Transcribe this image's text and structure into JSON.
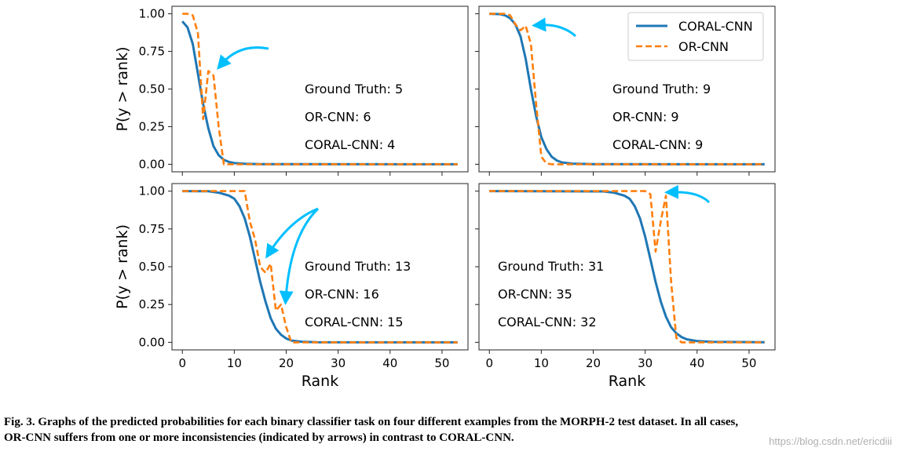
{
  "colors": {
    "coral": "#1f77b4",
    "orcnn": "#ff7f0e",
    "arrow": "#00bfff"
  },
  "caption": {
    "line1": "Fig. 3. Graphs of the predicted probabilities for each binary classifier task on four different examples from the MORPH-2 test dataset.  In all cases,",
    "line2": "OR-CNN suffers from one or more inconsistencies (indicated by arrows) in contrast to CORAL-CNN."
  },
  "watermark": "https://blog.csdn.net/ericdiii",
  "chart_data": [
    {
      "type": "line",
      "xlabel": "",
      "ylabel": "P(y > rank)",
      "xlim": [
        -2,
        55
      ],
      "ylim": [
        -0.05,
        1.05
      ],
      "xticks": [
        0,
        10,
        20,
        30,
        40,
        50
      ],
      "yticks": [
        "0.00",
        "0.25",
        "0.50",
        "0.75",
        "1.00"
      ],
      "annotations": [
        "Ground Truth: 5",
        "OR-CNN: 6",
        "CORAL-CNN: 4"
      ],
      "series": [
        {
          "name": "CORAL-CNN",
          "x": [
            0,
            1,
            2,
            3,
            4,
            5,
            6,
            7,
            8,
            9,
            10,
            12,
            15,
            53
          ],
          "y": [
            0.95,
            0.91,
            0.8,
            0.6,
            0.4,
            0.24,
            0.12,
            0.06,
            0.03,
            0.015,
            0.008,
            0.003,
            0.001,
            0.0
          ]
        },
        {
          "name": "OR-CNN",
          "x": [
            0,
            1,
            2,
            3,
            4,
            5,
            6,
            7,
            8,
            53
          ],
          "y": [
            1.0,
            1.0,
            0.99,
            0.87,
            0.3,
            0.62,
            0.59,
            0.25,
            0.0,
            0.0
          ]
        }
      ]
    },
    {
      "type": "line",
      "xlabel": "",
      "ylabel": "",
      "xlim": [
        -2,
        55
      ],
      "ylim": [
        -0.05,
        1.05
      ],
      "xticks": [
        0,
        10,
        20,
        30,
        40,
        50
      ],
      "yticks": [
        "0.00",
        "0.25",
        "0.50",
        "0.75",
        "1.00"
      ],
      "legend": {
        "position": "top-right",
        "entries": [
          "CORAL-CNN",
          "OR-CNN"
        ]
      },
      "annotations": [
        "Ground Truth: 9",
        "OR-CNN: 9",
        "CORAL-CNN: 9"
      ],
      "series": [
        {
          "name": "CORAL-CNN",
          "x": [
            0,
            2,
            3,
            4,
            5,
            6,
            7,
            8,
            9,
            10,
            11,
            12,
            13,
            14,
            16,
            20,
            53
          ],
          "y": [
            1.0,
            0.998,
            0.99,
            0.97,
            0.93,
            0.85,
            0.7,
            0.5,
            0.32,
            0.18,
            0.1,
            0.05,
            0.025,
            0.012,
            0.004,
            0.001,
            0.0
          ]
        },
        {
          "name": "OR-CNN",
          "x": [
            0,
            3,
            4,
            5,
            6,
            7,
            8,
            9,
            10,
            11,
            12,
            53
          ],
          "y": [
            1.0,
            1.0,
            0.99,
            0.93,
            0.89,
            0.92,
            0.8,
            0.4,
            0.05,
            0.005,
            0.0,
            0.0
          ]
        }
      ]
    },
    {
      "type": "line",
      "xlabel": "Rank",
      "ylabel": "P(y > rank)",
      "xlim": [
        -2,
        55
      ],
      "ylim": [
        -0.05,
        1.05
      ],
      "xticks": [
        0,
        10,
        20,
        30,
        40,
        50
      ],
      "yticks": [
        "0.00",
        "0.25",
        "0.50",
        "0.75",
        "1.00"
      ],
      "annotations": [
        "Ground Truth: 13",
        "OR-CNN: 16",
        "CORAL-CNN: 15"
      ],
      "series": [
        {
          "name": "CORAL-CNN",
          "x": [
            0,
            5,
            7,
            9,
            10,
            11,
            12,
            13,
            14,
            15,
            16,
            17,
            18,
            19,
            20,
            21,
            23,
            26,
            53
          ],
          "y": [
            1.0,
            0.999,
            0.99,
            0.97,
            0.95,
            0.9,
            0.82,
            0.7,
            0.55,
            0.4,
            0.27,
            0.16,
            0.09,
            0.05,
            0.025,
            0.012,
            0.004,
            0.001,
            0.0
          ]
        },
        {
          "name": "OR-CNN",
          "x": [
            0,
            12,
            13,
            14,
            15,
            16,
            17,
            18,
            19,
            20,
            21,
            53
          ],
          "y": [
            1.0,
            1.0,
            0.8,
            0.68,
            0.5,
            0.46,
            0.52,
            0.21,
            0.25,
            0.1,
            0.0,
            0.0
          ]
        }
      ]
    },
    {
      "type": "line",
      "xlabel": "Rank",
      "ylabel": "",
      "xlim": [
        -2,
        55
      ],
      "ylim": [
        -0.05,
        1.05
      ],
      "xticks": [
        0,
        10,
        20,
        30,
        40,
        50
      ],
      "yticks": [
        "0.00",
        "0.25",
        "0.50",
        "0.75",
        "1.00"
      ],
      "annotations": [
        "Ground Truth: 31",
        "OR-CNN: 35",
        "CORAL-CNN: 32"
      ],
      "series": [
        {
          "name": "CORAL-CNN",
          "x": [
            0,
            22,
            24,
            26,
            27,
            28,
            29,
            30,
            31,
            32,
            33,
            34,
            35,
            36,
            37,
            38,
            40,
            43,
            53
          ],
          "y": [
            1.0,
            0.998,
            0.99,
            0.97,
            0.95,
            0.9,
            0.82,
            0.7,
            0.55,
            0.4,
            0.27,
            0.17,
            0.1,
            0.06,
            0.035,
            0.02,
            0.008,
            0.003,
            0.001
          ]
        },
        {
          "name": "OR-CNN",
          "x": [
            0,
            30,
            31,
            32,
            33,
            34,
            35,
            36,
            37,
            53
          ],
          "y": [
            1.0,
            1.0,
            0.98,
            0.6,
            0.8,
            0.97,
            0.4,
            0.03,
            0.0,
            0.0
          ]
        }
      ]
    }
  ]
}
